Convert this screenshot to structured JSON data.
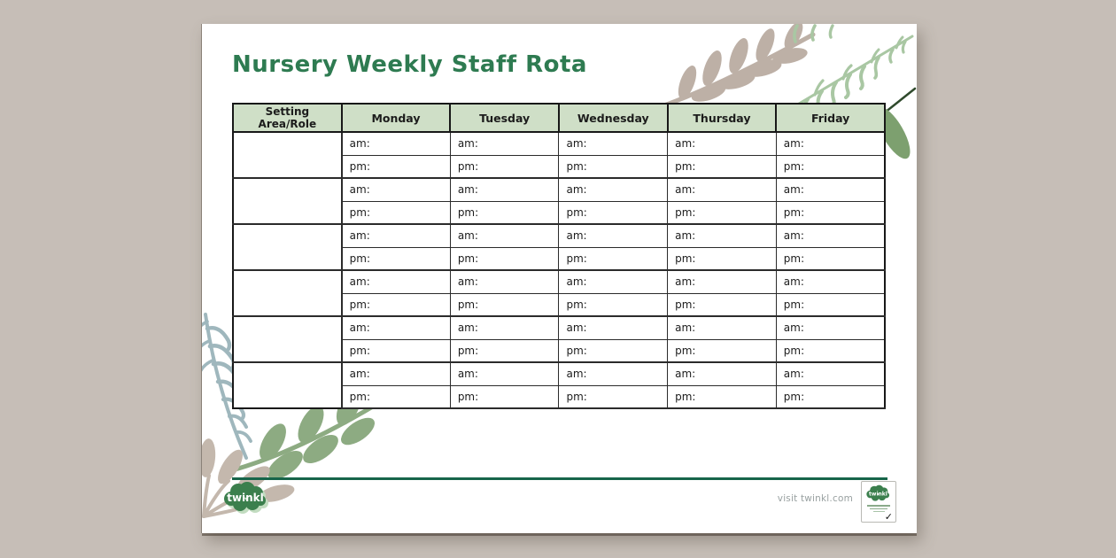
{
  "page": {
    "title": "Nursery Weekly Staff Rota"
  },
  "table": {
    "corner_header": "Setting Area/Role",
    "day_headers": [
      "Monday",
      "Tuesday",
      "Wednesday",
      "Thursday",
      "Friday"
    ],
    "row_groups": 6,
    "am_label": "am:",
    "pm_label": "pm:"
  },
  "footer": {
    "logo_text": "twinkl",
    "visit_text": "visit twinkl.com",
    "badge_logo_text": "twinkl"
  },
  "colors": {
    "accent_green": "#2e7b51",
    "header_green": "#cfdfc7",
    "footer_line_green": "#17654a",
    "background_taupe": "#c6beb7",
    "leaf_taupe": "#bdb0a6",
    "leaf_sage": "#8dab82",
    "leaf_light_fern": "#a9c7a3",
    "leaf_blue_fern": "#9fb7bd",
    "leaf_dark_green": "#7da06f"
  }
}
